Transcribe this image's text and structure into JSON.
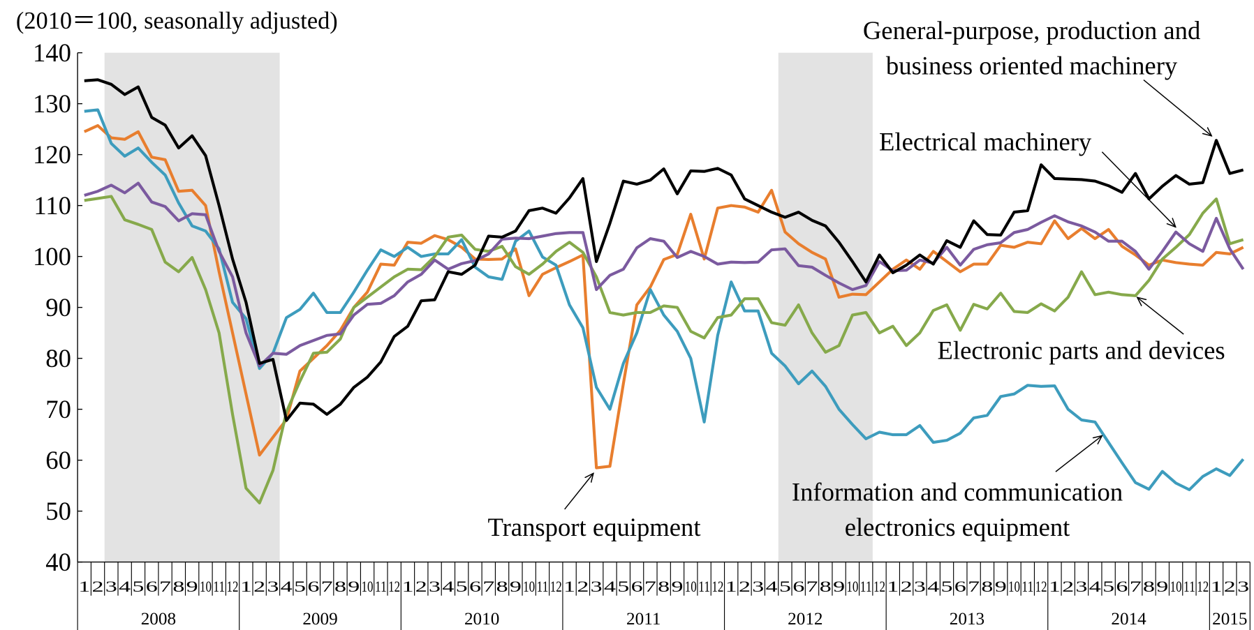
{
  "chart_data": {
    "type": "line",
    "note": "(2010＝100, seasonally adjusted)",
    "categories": [
      "1",
      "2",
      "3",
      "4",
      "5",
      "6",
      "7",
      "8",
      "9",
      "10",
      "11",
      "12",
      "1",
      "2",
      "3",
      "4",
      "5",
      "6",
      "7",
      "8",
      "9",
      "10",
      "11",
      "12",
      "1",
      "2",
      "3",
      "4",
      "5",
      "6",
      "7",
      "8",
      "9",
      "10",
      "11",
      "12",
      "1",
      "2",
      "3",
      "4",
      "5",
      "6",
      "7",
      "8",
      "9",
      "10",
      "11",
      "12",
      "1",
      "2",
      "3",
      "4",
      "5",
      "6",
      "7",
      "8",
      "9",
      "10",
      "11",
      "12",
      "1",
      "2",
      "3",
      "4",
      "5",
      "6",
      "7",
      "8",
      "9",
      "10",
      "11",
      "12",
      "1",
      "2",
      "3",
      "4",
      "5",
      "6",
      "7",
      "8",
      "9",
      "10",
      "11",
      "12",
      "1",
      "2",
      "3"
    ],
    "years": [
      "2008",
      "2009",
      "2010",
      "2011",
      "2012",
      "2013",
      "2014",
      "2015"
    ],
    "shaded_periods": [
      [
        2,
        14
      ],
      [
        52,
        58
      ]
    ],
    "ylim": [
      40,
      140
    ],
    "yticks": [
      40,
      50,
      60,
      70,
      80,
      90,
      100,
      110,
      120,
      130,
      140
    ],
    "series": [
      {
        "name": "General-purpose, production and business oriented machinery",
        "color": "#000000",
        "values": [
          134.5,
          134.7,
          133.8,
          131.8,
          133.3,
          127.3,
          125.8,
          121.3,
          123.7,
          119.8,
          110,
          99.5,
          91,
          79,
          79.8,
          67.8,
          71.2,
          71,
          69,
          71,
          74.3,
          76.3,
          79.3,
          84.3,
          86.3,
          91.3,
          91.5,
          97,
          96.5,
          98.3,
          104,
          103.8,
          105,
          109,
          109.5,
          108.5,
          111.5,
          115.3,
          99,
          106.5,
          114.8,
          114.2,
          115,
          117.2,
          112.3,
          116.8,
          116.7,
          117.3,
          116,
          111.3,
          110,
          108.7,
          107.7,
          108.7,
          107.1,
          106,
          102.8,
          99,
          95,
          100.3,
          96.8,
          98.3,
          100.3,
          98.5,
          103.1,
          101.8,
          107,
          104.3,
          104.2,
          108.7,
          109,
          118,
          115.3,
          115.2,
          115.1,
          114.8,
          113.9,
          112.6,
          116.3,
          111.3,
          113.8,
          115.9,
          114.2,
          114.5,
          122.8,
          116.3,
          117
        ]
      },
      {
        "name": "Electrical machinery",
        "color": "#7b5a9f",
        "values": [
          112,
          112.8,
          114,
          112.5,
          114.4,
          110.7,
          109.8,
          107,
          108.4,
          108.2,
          101,
          96,
          85,
          78.5,
          81,
          80.8,
          82.5,
          83.5,
          84.5,
          84.8,
          88.5,
          90.6,
          90.8,
          92.3,
          95,
          96.5,
          99.3,
          97.5,
          98.6,
          99.2,
          100.5,
          103.4,
          103.6,
          103.5,
          104,
          104.5,
          104.7,
          104.7,
          93.5,
          96.3,
          97.5,
          101.7,
          103.5,
          103,
          99.8,
          101,
          100,
          98.5,
          98.9,
          98.8,
          98.9,
          101.3,
          101.5,
          98.2,
          97.9,
          96.3,
          94.8,
          93.5,
          94.3,
          99,
          97.2,
          97.3,
          99.3,
          98.7,
          101.8,
          98.3,
          101.4,
          102.3,
          102.7,
          104.7,
          105.3,
          106.7,
          108,
          106.8,
          106,
          104.8,
          103,
          103,
          101,
          97.5,
          101,
          104.8,
          102.5,
          101,
          107.5,
          101.5,
          97.5
        ]
      },
      {
        "name": "Electronic parts and devices",
        "color": "#86a94b",
        "values": [
          111,
          111.4,
          111.8,
          107.2,
          106.3,
          105.3,
          98.9,
          97,
          99.8,
          93.5,
          85,
          69,
          54.5,
          51.6,
          58,
          69.5,
          75.5,
          81,
          81.2,
          83.8,
          90,
          92,
          94,
          96,
          97.5,
          97.4,
          100,
          103.8,
          104.2,
          101.4,
          101,
          102,
          98,
          96.5,
          98.5,
          101,
          102.8,
          100.8,
          96,
          89,
          88.5,
          89,
          89,
          90.3,
          90,
          85.3,
          84,
          88,
          88.5,
          91.7,
          91.7,
          87,
          86.5,
          90.5,
          85,
          81.2,
          82.5,
          88.5,
          89,
          85,
          86.3,
          82.5,
          85,
          89.4,
          90.5,
          85.5,
          90.6,
          89.7,
          92.8,
          89.2,
          89,
          90.7,
          89.3,
          92,
          97,
          92.5,
          93,
          92.5,
          92.3,
          95.3,
          99.5,
          101.8,
          104.3,
          108.5,
          111.3,
          102.5,
          103.3
        ]
      },
      {
        "name": "Information and communication electronics equipment",
        "color": "#3d9cbd",
        "values": [
          128.5,
          128.8,
          122.2,
          119.7,
          121.3,
          118.5,
          116,
          110.5,
          106,
          105,
          101.5,
          91,
          87.8,
          78,
          81,
          88,
          89.6,
          92.8,
          89,
          89,
          93,
          97.3,
          101.3,
          100,
          101.8,
          100,
          100.5,
          100.5,
          103.3,
          97.9,
          96,
          95.5,
          103,
          105,
          99.9,
          98.3,
          90.5,
          86,
          74.3,
          70,
          79,
          85,
          93.5,
          88.5,
          85.3,
          80,
          67.5,
          84.5,
          95,
          89.3,
          89.3,
          81,
          78.5,
          75,
          77.5,
          74.5,
          70,
          67,
          64.2,
          65.5,
          65,
          65,
          66.8,
          63.5,
          63.9,
          65.3,
          68.3,
          68.8,
          72.5,
          73,
          74.7,
          74.5,
          74.6,
          70,
          67.9,
          67.5,
          63.5,
          59.5,
          55.6,
          54.3,
          57.8,
          55.5,
          54.2,
          56.8,
          58.3,
          57,
          60.2
        ]
      },
      {
        "name": "Transport equipment",
        "color": "#e87e2e",
        "values": [
          124.5,
          125.7,
          123.3,
          123,
          124.5,
          119.5,
          119,
          112.8,
          113,
          110,
          97,
          85,
          73,
          61,
          64.5,
          68,
          77.5,
          80,
          82.5,
          85.5,
          90,
          93,
          98.5,
          98.3,
          102.8,
          102.6,
          104.1,
          103.3,
          101.8,
          99.5,
          99.4,
          99.5,
          101.5,
          92.3,
          96.5,
          97.8,
          99,
          100.3,
          58.5,
          58.8,
          75,
          90.5,
          94,
          99.4,
          100.4,
          108.3,
          99.5,
          109.5,
          110,
          109.7,
          108.7,
          113,
          104.8,
          102.5,
          100.8,
          99.5,
          92,
          92.6,
          92.5,
          95,
          97.5,
          99.3,
          97.5,
          101,
          99,
          97,
          98.5,
          98.5,
          102.2,
          101.8,
          102.8,
          102.5,
          107,
          103.5,
          105.5,
          103.5,
          105.3,
          102,
          100.3,
          98.3,
          99.3,
          98.8,
          98.5,
          98.3,
          100.8,
          100.5,
          101.8
        ]
      }
    ]
  }
}
